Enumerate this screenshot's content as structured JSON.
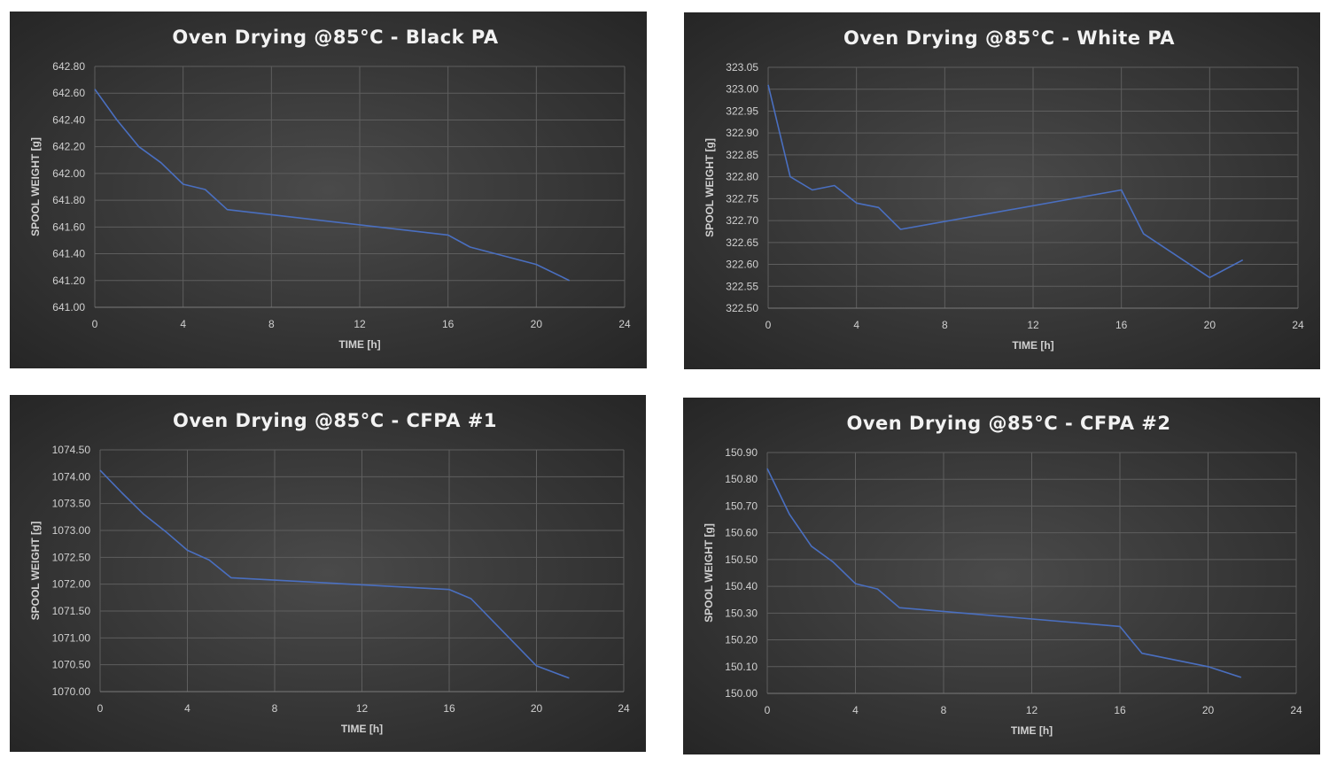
{
  "colors": {
    "background_center": "#4a4a4a",
    "background_edge": "#262626",
    "series": "#4a6fc0"
  },
  "chart_data": [
    {
      "type": "line",
      "title": "Oven Drying @85°C - Black PA",
      "xlabel": "TIME [h]",
      "ylabel": "SPOOL WEIGHT [g]",
      "xlim": [
        0,
        24
      ],
      "ylim": [
        641.0,
        642.8
      ],
      "xticks": [
        "0",
        "4",
        "8",
        "12",
        "16",
        "20",
        "24"
      ],
      "yticks": [
        "641.00",
        "641.20",
        "641.40",
        "641.60",
        "641.80",
        "642.00",
        "642.20",
        "642.40",
        "642.60",
        "642.80"
      ],
      "grid": true,
      "x": [
        0,
        1,
        2,
        3,
        4,
        5,
        6,
        16,
        17,
        20,
        21.5
      ],
      "y": [
        642.63,
        642.4,
        642.2,
        642.08,
        641.92,
        641.88,
        641.73,
        641.54,
        641.45,
        641.32,
        641.2
      ]
    },
    {
      "type": "line",
      "title": "Oven Drying @85°C - White PA",
      "xlabel": "TIME [h]",
      "ylabel": "SPOOL WEIGHT [g]",
      "xlim": [
        0,
        24
      ],
      "ylim": [
        322.5,
        323.05
      ],
      "xticks": [
        "0",
        "4",
        "8",
        "12",
        "16",
        "20",
        "24"
      ],
      "yticks": [
        "322.50",
        "322.55",
        "322.60",
        "322.65",
        "322.70",
        "322.75",
        "322.80",
        "322.85",
        "322.90",
        "322.95",
        "323.00",
        "323.05"
      ],
      "grid": true,
      "x": [
        0,
        1,
        2,
        3,
        4,
        5,
        6,
        16,
        17,
        20,
        21.5
      ],
      "y": [
        323.01,
        322.8,
        322.77,
        322.78,
        322.74,
        322.73,
        322.68,
        322.77,
        322.67,
        322.57,
        322.61
      ]
    },
    {
      "type": "line",
      "title": "Oven Drying @85°C - CFPA #1",
      "xlabel": "TIME [h]",
      "ylabel": "SPOOL WEIGHT [g]",
      "xlim": [
        0,
        24
      ],
      "ylim": [
        1070.0,
        1074.5
      ],
      "xticks": [
        "0",
        "4",
        "8",
        "12",
        "16",
        "20",
        "24"
      ],
      "yticks": [
        "1070.00",
        "1070.50",
        "1071.00",
        "1071.50",
        "1072.00",
        "1072.50",
        "1073.00",
        "1073.50",
        "1074.00",
        "1074.50"
      ],
      "grid": true,
      "x": [
        0,
        1,
        2,
        3,
        4,
        5,
        6,
        16,
        17,
        20,
        21.5
      ],
      "y": [
        1074.12,
        1073.7,
        1073.3,
        1072.98,
        1072.63,
        1072.45,
        1072.12,
        1071.9,
        1071.73,
        1070.48,
        1070.25
      ]
    },
    {
      "type": "line",
      "title": "Oven Drying @85°C - CFPA #2",
      "xlabel": "TIME [h]",
      "ylabel": "SPOOL WEIGHT [g]",
      "xlim": [
        0,
        24
      ],
      "ylim": [
        150.0,
        150.9
      ],
      "xticks": [
        "0",
        "4",
        "8",
        "12",
        "16",
        "20",
        "24"
      ],
      "yticks": [
        "150.00",
        "150.10",
        "150.20",
        "150.30",
        "150.40",
        "150.50",
        "150.60",
        "150.70",
        "150.80",
        "150.90"
      ],
      "grid": true,
      "x": [
        0,
        1,
        2,
        3,
        4,
        5,
        6,
        16,
        17,
        20,
        21.5
      ],
      "y": [
        150.84,
        150.67,
        150.55,
        150.49,
        150.41,
        150.39,
        150.32,
        150.25,
        150.15,
        150.1,
        150.06
      ]
    }
  ]
}
